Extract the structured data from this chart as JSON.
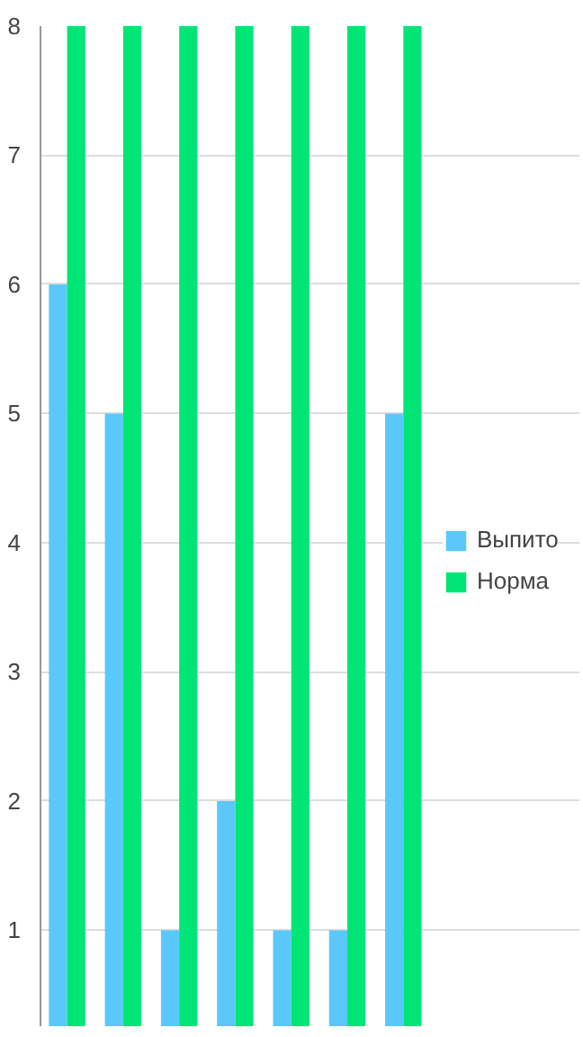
{
  "chart_data": {
    "type": "bar",
    "categories": [
      null,
      null,
      null,
      null,
      null,
      null,
      null
    ],
    "series": [
      {
        "name": "Выпито",
        "color": "#5ac8fa",
        "values": [
          6,
          5,
          1,
          2,
          1,
          1,
          5
        ]
      },
      {
        "name": "Норма",
        "color": "#00e676",
        "values": [
          8,
          8,
          8,
          8,
          8,
          8,
          8
        ]
      }
    ],
    "ylim": [
      0.25,
      8
    ],
    "yticks": [
      1,
      2,
      3,
      4,
      5,
      6,
      7,
      8
    ],
    "grid": "y",
    "legend": "right",
    "tick_labels": "y"
  }
}
